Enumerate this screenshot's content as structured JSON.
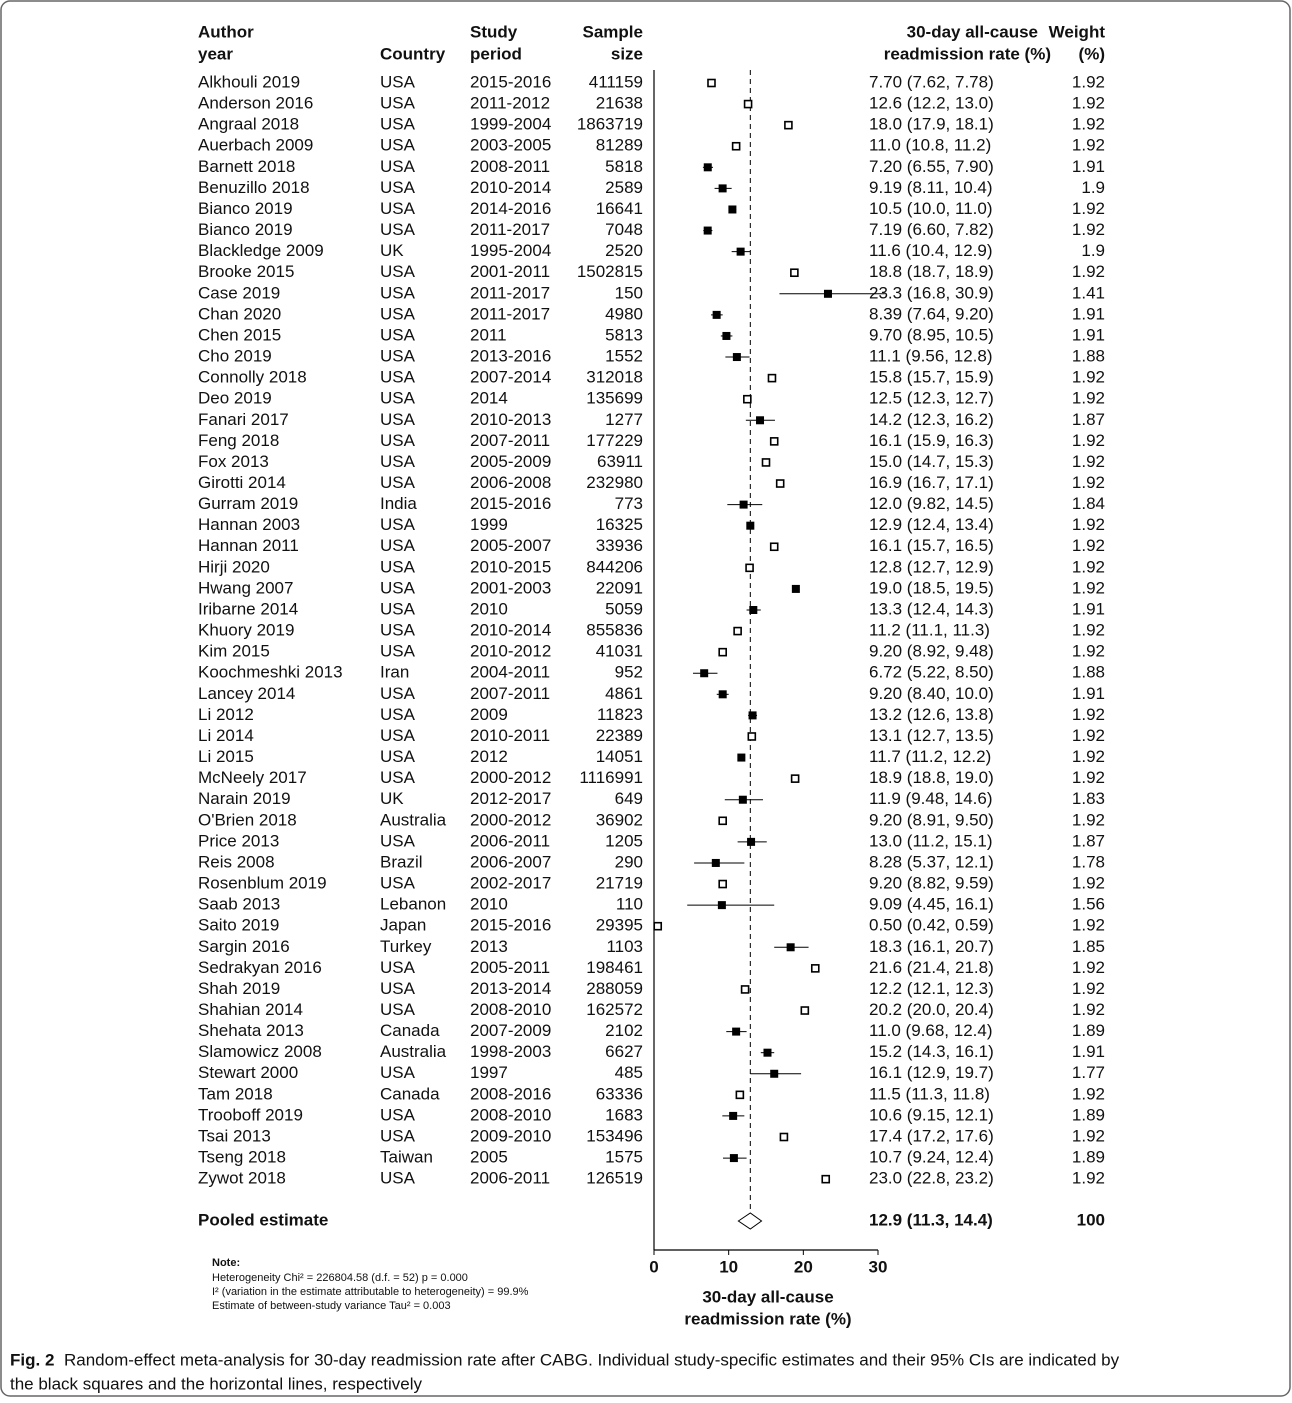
{
  "chart_data": {
    "type": "forest",
    "header": {
      "author": [
        "Author",
        "year"
      ],
      "country": "Country",
      "period": [
        "Study",
        "period"
      ],
      "sample": [
        "Sample",
        "size"
      ],
      "estimate": [
        "30-day all-cause",
        "readmission rate (%)"
      ],
      "weight": [
        "Weight",
        "(%)"
      ]
    },
    "authors": [
      "Alkhouli 2019",
      "Anderson 2016",
      "Angraal 2018",
      "Auerbach 2009",
      "Barnett 2018",
      "Benuzillo 2018",
      "Bianco 2019",
      "Bianco 2019",
      "Blackledge 2009",
      "Brooke 2015",
      "Case 2019",
      "Chan 2020",
      "Chen 2015",
      "Cho 2019",
      "Connolly 2018",
      "Deo 2019",
      "Fanari 2017",
      "Feng 2018",
      "Fox 2013",
      "Girotti 2014",
      "Gurram 2019",
      "Hannan 2003",
      "Hannan 2011",
      "Hirji 2020",
      "Hwang 2007",
      "Iribarne 2014",
      "Khuory 2019",
      "Kim 2015",
      "Koochmeshki 2013",
      "Lancey 2014",
      "Li 2012",
      "Li 2014",
      "Li 2015",
      "McNeely 2017",
      "Narain 2019",
      "O'Brien 2018",
      "Price 2013",
      "Reis 2008",
      "Rosenblum 2019",
      "Saab 2013",
      "Saito 2019",
      "Sargin 2016",
      "Sedrakyan 2016",
      "Shah 2019",
      "Shahian 2014",
      "Shehata 2013",
      "Slamowicz 2008",
      "Stewart 2000",
      "Tam 2018",
      "Trooboff 2019",
      "Tsai 2013",
      "Tseng 2018",
      "Zywot 2018"
    ],
    "countries": [
      "USA",
      "USA",
      "USA",
      "USA",
      "USA",
      "USA",
      "USA",
      "USA",
      "UK",
      "USA",
      "USA",
      "USA",
      "USA",
      "USA",
      "USA",
      "USA",
      "USA",
      "USA",
      "USA",
      "USA",
      "India",
      "USA",
      "USA",
      "USA",
      "USA",
      "USA",
      "USA",
      "USA",
      "Iran",
      "USA",
      "USA",
      "USA",
      "USA",
      "USA",
      "UK",
      "Australia",
      "USA",
      "Brazil",
      "USA",
      "Lebanon",
      "Japan",
      "Turkey",
      "USA",
      "USA",
      "USA",
      "Canada",
      "Australia",
      "USA",
      "Canada",
      "USA",
      "USA",
      "Taiwan",
      "USA"
    ],
    "periods": [
      "2015-2016",
      "2011-2012",
      "1999-2004",
      "2003-2005",
      "2008-2011",
      "2010-2014",
      "2014-2016",
      "2011-2017",
      "1995-2004",
      "2001-2011",
      "2011-2017",
      "2011-2017",
      "2011",
      "2013-2016",
      "2007-2014",
      "2014",
      "2010-2013",
      "2007-2011",
      "2005-2009",
      "2006-2008",
      "2015-2016",
      "1999",
      "2005-2007",
      "2010-2015",
      "2001-2003",
      "2010",
      "2010-2014",
      "2010-2012",
      "2004-2011",
      "2007-2011",
      "2009",
      "2010-2011",
      "2012",
      "2000-2012",
      "2012-2017",
      "2000-2012",
      "2006-2011",
      "2006-2007",
      "2002-2017",
      "2010",
      "2015-2016",
      "2013",
      "2005-2011",
      "2013-2014",
      "2008-2010",
      "2007-2009",
      "1998-2003",
      "1997",
      "2008-2016",
      "2008-2010",
      "2009-2010",
      "2005",
      "2006-2011"
    ],
    "sample_sizes": [
      411159,
      21638,
      1863719,
      81289,
      5818,
      2589,
      16641,
      7048,
      2520,
      1502815,
      150,
      4980,
      5813,
      1552,
      312018,
      135699,
      1277,
      177229,
      63911,
      232980,
      773,
      16325,
      33936,
      844206,
      22091,
      5059,
      855836,
      41031,
      952,
      4861,
      11823,
      22389,
      14051,
      1116991,
      649,
      36902,
      1205,
      290,
      21719,
      110,
      29395,
      1103,
      198461,
      288059,
      162572,
      2102,
      6627,
      485,
      63336,
      1683,
      153496,
      1575,
      126519
    ],
    "values": [
      7.7,
      12.6,
      18.0,
      11.0,
      7.2,
      9.19,
      10.5,
      7.19,
      11.6,
      18.8,
      23.3,
      8.39,
      9.7,
      11.1,
      15.8,
      12.5,
      14.2,
      16.1,
      15.0,
      16.9,
      12.0,
      12.9,
      16.1,
      12.8,
      19.0,
      13.3,
      11.2,
      9.2,
      6.72,
      9.2,
      13.2,
      13.1,
      11.7,
      18.9,
      11.9,
      9.2,
      13.0,
      8.28,
      9.2,
      9.09,
      0.5,
      18.3,
      21.6,
      12.2,
      20.2,
      11.0,
      15.2,
      16.1,
      11.5,
      10.6,
      17.4,
      10.7,
      23.0
    ],
    "lower": [
      7.62,
      12.2,
      17.9,
      10.8,
      6.55,
      8.11,
      10.0,
      6.6,
      10.4,
      18.7,
      16.8,
      7.64,
      8.95,
      9.56,
      15.7,
      12.3,
      12.3,
      15.9,
      14.7,
      16.7,
      9.82,
      12.4,
      15.7,
      12.7,
      18.5,
      12.4,
      11.1,
      8.92,
      5.22,
      8.4,
      12.6,
      12.7,
      11.2,
      18.8,
      9.48,
      8.91,
      11.2,
      5.37,
      8.82,
      4.45,
      0.42,
      16.1,
      21.4,
      12.1,
      20.0,
      9.68,
      14.3,
      12.9,
      11.3,
      9.15,
      17.2,
      9.24,
      22.8
    ],
    "upper": [
      7.78,
      13.0,
      18.1,
      11.2,
      7.9,
      10.4,
      11.0,
      7.82,
      12.9,
      18.9,
      30.9,
      9.2,
      10.5,
      12.8,
      15.9,
      12.7,
      16.2,
      16.3,
      15.3,
      17.1,
      14.5,
      13.4,
      16.5,
      12.9,
      19.5,
      14.3,
      11.3,
      9.48,
      8.5,
      10.0,
      13.8,
      13.5,
      12.2,
      19.0,
      14.6,
      9.5,
      15.1,
      12.1,
      9.59,
      16.1,
      0.59,
      20.7,
      21.8,
      12.3,
      20.4,
      12.4,
      16.1,
      19.7,
      11.8,
      12.1,
      17.6,
      12.4,
      23.2
    ],
    "value_labels": [
      "7.70 (7.62, 7.78)",
      "12.6 (12.2, 13.0)",
      "18.0 (17.9, 18.1)",
      "11.0 (10.8, 11.2)",
      "7.20 (6.55, 7.90)",
      "9.19 (8.11, 10.4)",
      "10.5 (10.0, 11.0)",
      "7.19 (6.60, 7.82)",
      "11.6 (10.4, 12.9)",
      "18.8 (18.7, 18.9)",
      "23.3 (16.8, 30.9)",
      "8.39 (7.64, 9.20)",
      "9.70 (8.95, 10.5)",
      "11.1 (9.56, 12.8)",
      "15.8 (15.7, 15.9)",
      "12.5 (12.3, 12.7)",
      "14.2 (12.3, 16.2)",
      "16.1 (15.9, 16.3)",
      "15.0 (14.7, 15.3)",
      "16.9 (16.7, 17.1)",
      "12.0 (9.82, 14.5)",
      "12.9 (12.4, 13.4)",
      "16.1 (15.7, 16.5)",
      "12.8 (12.7, 12.9)",
      "19.0 (18.5, 19.5)",
      "13.3 (12.4, 14.3)",
      "11.2 (11.1, 11.3)",
      "9.20 (8.92, 9.48)",
      "6.72 (5.22, 8.50)",
      "9.20 (8.40, 10.0)",
      "13.2 (12.6, 13.8)",
      "13.1 (12.7, 13.5)",
      "11.7 (11.2, 12.2)",
      "18.9 (18.8, 19.0)",
      "11.9 (9.48, 14.6)",
      "9.20 (8.91, 9.50)",
      "13.0 (11.2, 15.1)",
      "8.28 (5.37, 12.1)",
      "9.20 (8.82, 9.59)",
      "9.09 (4.45, 16.1)",
      "0.50 (0.42, 0.59)",
      "18.3 (16.1, 20.7)",
      "21.6 (21.4, 21.8)",
      "12.2 (12.1, 12.3)",
      "20.2 (20.0, 20.4)",
      "11.0 (9.68, 12.4)",
      "15.2 (14.3, 16.1)",
      "16.1 (12.9, 19.7)",
      "11.5 (11.3, 11.8)",
      "10.6 (9.15, 12.1)",
      "17.4 (17.2, 17.6)",
      "10.7 (9.24, 12.4)",
      "23.0 (22.8, 23.2)"
    ],
    "weights": [
      1.92,
      1.92,
      1.92,
      1.92,
      1.91,
      1.9,
      1.92,
      1.92,
      1.9,
      1.92,
      1.41,
      1.91,
      1.91,
      1.88,
      1.92,
      1.92,
      1.87,
      1.92,
      1.92,
      1.92,
      1.84,
      1.92,
      1.92,
      1.92,
      1.92,
      1.91,
      1.92,
      1.92,
      1.88,
      1.91,
      1.92,
      1.92,
      1.92,
      1.92,
      1.83,
      1.92,
      1.87,
      1.78,
      1.92,
      1.56,
      1.92,
      1.85,
      1.92,
      1.92,
      1.92,
      1.89,
      1.91,
      1.77,
      1.92,
      1.89,
      1.92,
      1.89,
      1.92
    ],
    "pooled": {
      "label": "Pooled estimate",
      "value": 12.9,
      "lower": 11.3,
      "upper": 14.4,
      "value_label": "12.9 (11.3, 14.4)",
      "weight": 100
    },
    "xlim": [
      0,
      30
    ],
    "xticks": [
      0,
      10,
      20,
      30
    ],
    "x_label": [
      "30-day all-cause",
      "readmission rate (%)"
    ],
    "note": [
      "Note:",
      "Heterogeneity Chi² = 226804.58 (d.f. = 52) p = 0.000",
      "I² (variation in the estimate attributable to heterogeneity) = 99.9%",
      "Estimate of between-study variance Tau² = 0.003"
    ],
    "caption_label": "Fig. 2",
    "caption": [
      "Random-effect meta-analysis for 30-day readmission rate after CABG. Individual study-specific estimates and their 95% CIs are indicated by",
      "the black squares and the horizontal lines, respectively"
    ]
  }
}
